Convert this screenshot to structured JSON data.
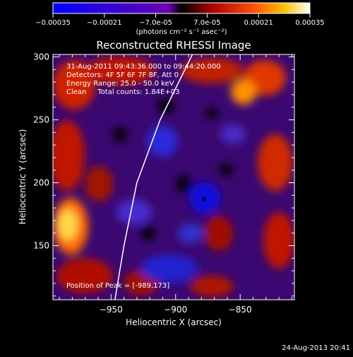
{
  "colorbar": {
    "tick_labels": [
      "-0.00035",
      "-0.00021",
      "-7.0e-05",
      "7.0e-05",
      "0.00021",
      "0.00035"
    ],
    "unit_label": "(photons cm⁻² s⁻¹ asec⁻²)",
    "range": [
      -0.00035,
      0.00035
    ]
  },
  "chart_data": {
    "type": "heatmap",
    "title": "Reconstructed RHESSI Image",
    "xlabel": "Heliocentric X (arcsec)",
    "ylabel": "Heliocentric Y (arcsec)",
    "xlim": [
      -995,
      -808
    ],
    "ylim": [
      107,
      302
    ],
    "x_ticks": [
      -950,
      -900,
      -850
    ],
    "x_tick_labels": [
      "−950",
      "−900",
      "−850"
    ],
    "y_ticks": [
      150,
      200,
      250,
      300
    ],
    "y_tick_labels": [
      "150",
      "200",
      "250",
      "300"
    ],
    "annotations": [
      "31-Aug-2011 09:43:36.000 to 09:44:20.000",
      "Detectors: 4F 5F 6F 7F 8F, Att 0",
      "Energy Range: 25.0 - 50.0 keV",
      "Clean     Total counts: 1.84E+03"
    ],
    "peak_label": "Position of Peak = [-989,173]",
    "peak": [
      -989,
      173
    ],
    "marked_point": [
      -878,
      187
    ],
    "limb_points": [
      [
        -947,
        107
      ],
      [
        -940,
        150
      ],
      [
        -930,
        200
      ],
      [
        -912,
        250
      ],
      [
        -887,
        302
      ]
    ]
  },
  "footer": {
    "timestamp": "24-Aug-2013 20:41"
  }
}
